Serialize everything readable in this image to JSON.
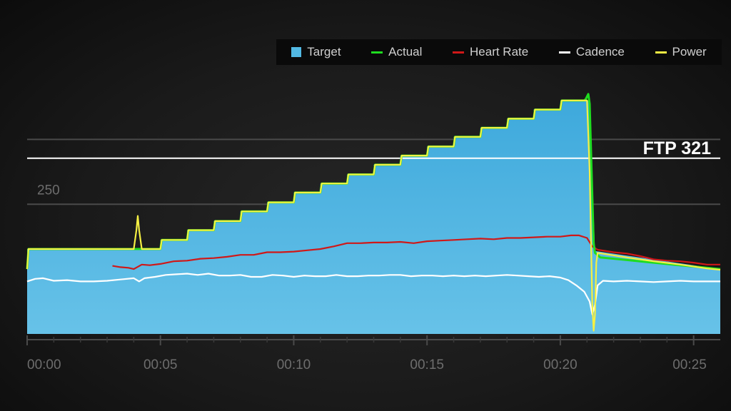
{
  "colors": {
    "target": "#52b9e4",
    "actual": "#1fdc20",
    "heart_rate": "#d01818",
    "cadence": "#ffffff",
    "power": "#f5f043",
    "grid": "#4a4a4a",
    "ftp_line": "#ffffff"
  },
  "legend": [
    {
      "label": "Target",
      "key": "target",
      "shape": "box"
    },
    {
      "label": "Actual",
      "key": "actual",
      "shape": "line"
    },
    {
      "label": "Heart Rate",
      "key": "heart_rate",
      "shape": "line"
    },
    {
      "label": "Cadence",
      "key": "cadence",
      "shape": "line"
    },
    {
      "label": "Power",
      "key": "power",
      "shape": "line"
    }
  ],
  "chart_data": {
    "type": "area",
    "x_unit": "minutes",
    "xlim": [
      0,
      26
    ],
    "ylim": [
      50,
      400
    ],
    "x_ticks": [
      {
        "value": 0,
        "label": "00:00"
      },
      {
        "value": 5,
        "label": "00:05"
      },
      {
        "value": 10,
        "label": "00:10"
      },
      {
        "value": 15,
        "label": "00:15"
      },
      {
        "value": 20,
        "label": "00:20"
      },
      {
        "value": 25,
        "label": "00:25"
      }
    ],
    "y_ticks": [
      {
        "value": 250,
        "label": "250"
      }
    ],
    "grid": true,
    "legend_position": "top-right",
    "reference_line": {
      "value": 321,
      "label": "FTP 321"
    },
    "series": [
      {
        "name": "Target",
        "key": "target",
        "type": "area",
        "step": true,
        "points": [
          [
            0,
            181
          ],
          [
            5,
            181
          ],
          [
            5,
            195
          ],
          [
            6,
            195
          ],
          [
            6,
            210
          ],
          [
            7,
            210
          ],
          [
            7,
            224
          ],
          [
            8,
            224
          ],
          [
            8,
            239
          ],
          [
            9,
            239
          ],
          [
            9,
            253
          ],
          [
            10,
            253
          ],
          [
            10,
            268
          ],
          [
            11,
            268
          ],
          [
            11,
            282
          ],
          [
            12,
            282
          ],
          [
            12,
            296
          ],
          [
            13,
            296
          ],
          [
            13,
            311
          ],
          [
            14,
            311
          ],
          [
            14,
            325
          ],
          [
            15,
            325
          ],
          [
            15,
            339
          ],
          [
            16,
            339
          ],
          [
            16,
            354
          ],
          [
            17,
            354
          ],
          [
            17,
            368
          ],
          [
            18,
            368
          ],
          [
            18,
            382
          ],
          [
            19,
            382
          ],
          [
            19,
            396
          ],
          [
            20,
            396
          ],
          [
            20,
            410
          ],
          [
            21.1,
            410
          ],
          [
            21.3,
            178
          ],
          [
            26,
            150
          ]
        ]
      },
      {
        "name": "Actual",
        "key": "actual",
        "points": [
          [
            0,
            150
          ],
          [
            0.05,
            181
          ],
          [
            4.2,
            181
          ],
          [
            5,
            181
          ],
          [
            5.05,
            195
          ],
          [
            6,
            195
          ],
          [
            6.05,
            210
          ],
          [
            7,
            210
          ],
          [
            7.05,
            224
          ],
          [
            8,
            224
          ],
          [
            8.05,
            239
          ],
          [
            9,
            239
          ],
          [
            9.05,
            253
          ],
          [
            10,
            253
          ],
          [
            10.05,
            268
          ],
          [
            11,
            268
          ],
          [
            11.05,
            282
          ],
          [
            12,
            282
          ],
          [
            12.05,
            296
          ],
          [
            13,
            296
          ],
          [
            13.05,
            311
          ],
          [
            14,
            311
          ],
          [
            14.05,
            325
          ],
          [
            15,
            325
          ],
          [
            15.05,
            339
          ],
          [
            16,
            339
          ],
          [
            16.05,
            354
          ],
          [
            17,
            354
          ],
          [
            17.05,
            368
          ],
          [
            18,
            368
          ],
          [
            18.05,
            382
          ],
          [
            19,
            382
          ],
          [
            19.05,
            396
          ],
          [
            20,
            396
          ],
          [
            20.05,
            410
          ],
          [
            20.9,
            410
          ],
          [
            20.95,
            412
          ],
          [
            21.05,
            420
          ],
          [
            21.1,
            405
          ],
          [
            21.25,
            190
          ],
          [
            21.3,
            175
          ],
          [
            21.5,
            168
          ],
          [
            22.5,
            164
          ],
          [
            23.5,
            160
          ],
          [
            24.5,
            156
          ],
          [
            25.5,
            152
          ],
          [
            26,
            150
          ]
        ]
      },
      {
        "name": "Power",
        "key": "power",
        "points": [
          [
            0,
            150
          ],
          [
            0.05,
            181
          ],
          [
            4.0,
            181
          ],
          [
            4.1,
            210
          ],
          [
            4.15,
            232
          ],
          [
            4.2,
            210
          ],
          [
            4.3,
            181
          ],
          [
            5,
            181
          ],
          [
            5.05,
            195
          ],
          [
            6,
            195
          ],
          [
            6.05,
            210
          ],
          [
            7,
            210
          ],
          [
            7.05,
            224
          ],
          [
            8,
            224
          ],
          [
            8.05,
            239
          ],
          [
            9,
            239
          ],
          [
            9.05,
            253
          ],
          [
            10,
            253
          ],
          [
            10.05,
            268
          ],
          [
            11,
            268
          ],
          [
            11.05,
            282
          ],
          [
            12,
            282
          ],
          [
            12.05,
            296
          ],
          [
            13,
            296
          ],
          [
            13.05,
            311
          ],
          [
            14,
            311
          ],
          [
            14.05,
            325
          ],
          [
            15,
            325
          ],
          [
            15.05,
            339
          ],
          [
            16,
            339
          ],
          [
            16.05,
            354
          ],
          [
            17,
            354
          ],
          [
            17.05,
            368
          ],
          [
            18,
            368
          ],
          [
            18.05,
            382
          ],
          [
            19,
            382
          ],
          [
            19.05,
            396
          ],
          [
            20,
            396
          ],
          [
            20.05,
            410
          ],
          [
            21.0,
            410
          ],
          [
            21.1,
            300
          ],
          [
            21.2,
            95
          ],
          [
            21.25,
            55
          ],
          [
            21.3,
            80
          ],
          [
            21.35,
            160
          ],
          [
            21.4,
            175
          ],
          [
            22.5,
            168
          ],
          [
            23.5,
            162
          ],
          [
            24.5,
            157
          ],
          [
            25.5,
            151
          ],
          [
            26,
            149
          ]
        ]
      },
      {
        "name": "Heart Rate",
        "key": "heart_rate",
        "points": [
          [
            3.2,
            155
          ],
          [
            3.5,
            153
          ],
          [
            3.8,
            152
          ],
          [
            4.0,
            150
          ],
          [
            4.3,
            157
          ],
          [
            4.6,
            156
          ],
          [
            5.0,
            158
          ],
          [
            5.5,
            162
          ],
          [
            6.0,
            163
          ],
          [
            6.5,
            166
          ],
          [
            7.0,
            167
          ],
          [
            7.5,
            169
          ],
          [
            8.0,
            172
          ],
          [
            8.5,
            172
          ],
          [
            9.0,
            176
          ],
          [
            9.5,
            176
          ],
          [
            10.0,
            177
          ],
          [
            10.5,
            179
          ],
          [
            11.0,
            181
          ],
          [
            11.5,
            185
          ],
          [
            12.0,
            190
          ],
          [
            12.5,
            190
          ],
          [
            13.0,
            191
          ],
          [
            13.5,
            191
          ],
          [
            14.0,
            192
          ],
          [
            14.5,
            190
          ],
          [
            15.0,
            193
          ],
          [
            15.5,
            194
          ],
          [
            16.0,
            195
          ],
          [
            16.5,
            196
          ],
          [
            17.0,
            197
          ],
          [
            17.5,
            196
          ],
          [
            18.0,
            198
          ],
          [
            18.5,
            198
          ],
          [
            19.0,
            199
          ],
          [
            19.5,
            200
          ],
          [
            20.0,
            200
          ],
          [
            20.4,
            202
          ],
          [
            20.7,
            202
          ],
          [
            21.0,
            198
          ],
          [
            21.2,
            185
          ],
          [
            21.4,
            180
          ],
          [
            22.0,
            176
          ],
          [
            22.5,
            174
          ],
          [
            23.0,
            170
          ],
          [
            23.5,
            165
          ],
          [
            24.0,
            163
          ],
          [
            24.5,
            162
          ],
          [
            25.0,
            160
          ],
          [
            25.5,
            157
          ],
          [
            26,
            157
          ]
        ]
      },
      {
        "name": "Cadence",
        "key": "cadence",
        "points": [
          [
            0,
            131
          ],
          [
            0.3,
            135
          ],
          [
            0.6,
            136
          ],
          [
            1.0,
            132
          ],
          [
            1.5,
            133
          ],
          [
            2.0,
            131
          ],
          [
            2.5,
            131
          ],
          [
            3.0,
            132
          ],
          [
            3.5,
            134
          ],
          [
            4.0,
            136
          ],
          [
            4.2,
            131
          ],
          [
            4.4,
            136
          ],
          [
            4.8,
            138
          ],
          [
            5.2,
            141
          ],
          [
            5.6,
            142
          ],
          [
            6.0,
            143
          ],
          [
            6.4,
            141
          ],
          [
            6.8,
            143
          ],
          [
            7.2,
            140
          ],
          [
            7.6,
            140
          ],
          [
            8.0,
            141
          ],
          [
            8.4,
            138
          ],
          [
            8.8,
            138
          ],
          [
            9.2,
            141
          ],
          [
            9.6,
            140
          ],
          [
            10.0,
            138
          ],
          [
            10.4,
            140
          ],
          [
            10.8,
            139
          ],
          [
            11.2,
            139
          ],
          [
            11.6,
            141
          ],
          [
            12.0,
            139
          ],
          [
            12.4,
            139
          ],
          [
            12.8,
            140
          ],
          [
            13.2,
            140
          ],
          [
            13.6,
            141
          ],
          [
            14.0,
            141
          ],
          [
            14.4,
            139
          ],
          [
            14.8,
            140
          ],
          [
            15.2,
            140
          ],
          [
            15.6,
            139
          ],
          [
            16.0,
            140
          ],
          [
            16.4,
            139
          ],
          [
            16.8,
            140
          ],
          [
            17.2,
            139
          ],
          [
            17.6,
            140
          ],
          [
            18.0,
            141
          ],
          [
            18.4,
            140
          ],
          [
            18.8,
            139
          ],
          [
            19.2,
            138
          ],
          [
            19.6,
            139
          ],
          [
            20.0,
            137
          ],
          [
            20.3,
            133
          ],
          [
            20.6,
            125
          ],
          [
            20.9,
            115
          ],
          [
            21.1,
            100
          ],
          [
            21.2,
            80
          ],
          [
            21.3,
            95
          ],
          [
            21.4,
            125
          ],
          [
            21.6,
            132
          ],
          [
            22.0,
            131
          ],
          [
            22.5,
            132
          ],
          [
            23.0,
            131
          ],
          [
            23.5,
            130
          ],
          [
            24.0,
            131
          ],
          [
            24.5,
            132
          ],
          [
            25.0,
            131
          ],
          [
            25.5,
            131
          ],
          [
            26,
            131
          ]
        ]
      }
    ]
  }
}
